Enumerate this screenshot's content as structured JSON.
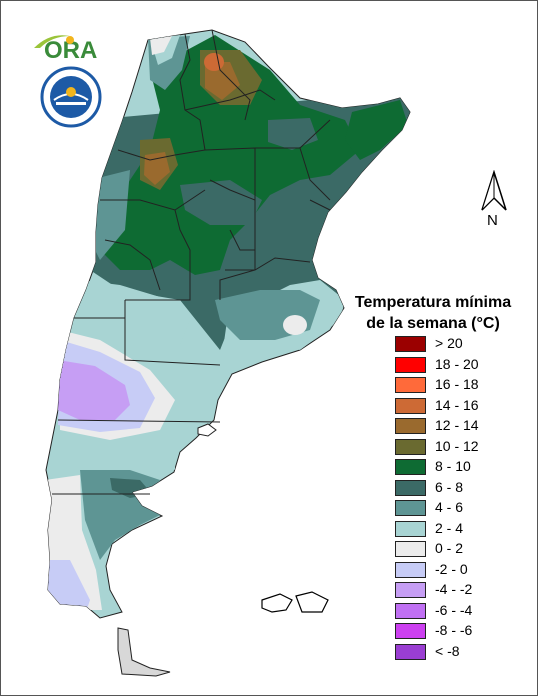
{
  "title_line1": "Temperatura mínima",
  "title_line2": "de la semana (°C)",
  "north_label": "N",
  "logo_text": "ORA",
  "colors": {
    "gt20": "#9b0000",
    "c18_20": "#ff0000",
    "c16_18": "#ff6a3a",
    "c14_16": "#cd6a35",
    "c12_14": "#9a6a2e",
    "c10_12": "#6a6a30",
    "c8_10": "#0e6b33",
    "c6_8": "#3b6a66",
    "c4_6": "#5e9594",
    "c2_4": "#a8d4d3",
    "c0_2": "#ececec",
    "m2_0": "#c7ccf6",
    "m4_m2": "#c69ef4",
    "m6_m4": "#c070f3",
    "m8_m6": "#cc40f0",
    "lt_m8": "#9a3ed2"
  },
  "legend": [
    {
      "label": "> 20",
      "color": "#9b0000"
    },
    {
      "label": "18 - 20",
      "color": "#ff0000"
    },
    {
      "label": "16 - 18",
      "color": "#ff6a3a"
    },
    {
      "label": "14 - 16",
      "color": "#cd6a35"
    },
    {
      "label": "12 - 14",
      "color": "#9a6a2e"
    },
    {
      "label": "10 - 12",
      "color": "#6a6a30"
    },
    {
      "label": "8 - 10",
      "color": "#0e6b33"
    },
    {
      "label": "6 - 8",
      "color": "#3b6a66"
    },
    {
      "label": "4 - 6",
      "color": "#5e9594"
    },
    {
      "label": "2 - 4",
      "color": "#a8d4d3"
    },
    {
      "label": "0 - 2",
      "color": "#ececec"
    },
    {
      "label": "-2 - 0",
      "color": "#c7ccf6"
    },
    {
      "label": "-4 - -2",
      "color": "#c69ef4"
    },
    {
      "label": "-6 - -4",
      "color": "#c070f3"
    },
    {
      "label": "-8 - -6",
      "color": "#cc40f0"
    },
    {
      "label": "< -8",
      "color": "#9a3ed2"
    }
  ]
}
